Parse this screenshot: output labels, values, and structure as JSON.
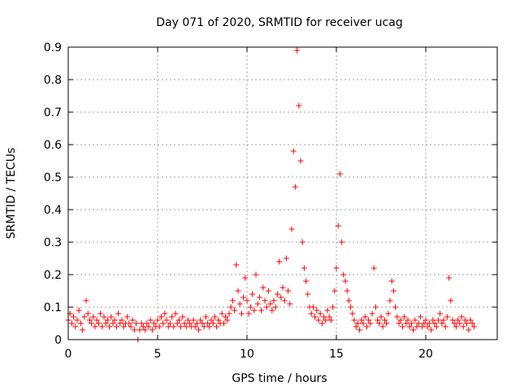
{
  "chart_data": {
    "type": "scatter",
    "title": "Day 071 of 2020, SRMTID for receiver ucag",
    "xlabel": "GPS time / hours",
    "ylabel": "SRMTID / TECUs",
    "xlim": [
      0,
      24
    ],
    "ylim": [
      0,
      0.9
    ],
    "x_ticks": [
      0,
      5,
      10,
      15,
      20
    ],
    "y_ticks": [
      0,
      0.1,
      0.2,
      0.3,
      0.4,
      0.5,
      0.6,
      0.7,
      0.8,
      0.9
    ],
    "x_tick_labels": [
      "0",
      "5",
      "10",
      "15",
      "20"
    ],
    "y_tick_labels": [
      "0",
      "0.1",
      "0.2",
      "0.3",
      "0.4",
      "0.5",
      "0.6",
      "0.7",
      "0.8",
      "0.9"
    ],
    "grid": true,
    "marker": "+",
    "series": [
      {
        "name": "SRMTID",
        "color": "#ff0000",
        "points": [
          [
            0.0,
            0.06
          ],
          [
            0.1,
            0.08
          ],
          [
            0.2,
            0.05
          ],
          [
            0.3,
            0.07
          ],
          [
            0.4,
            0.04
          ],
          [
            0.5,
            0.06
          ],
          [
            0.6,
            0.09
          ],
          [
            0.7,
            0.05
          ],
          [
            0.8,
            0.03
          ],
          [
            0.9,
            0.07
          ],
          [
            1.0,
            0.12
          ],
          [
            1.1,
            0.08
          ],
          [
            1.2,
            0.06
          ],
          [
            1.3,
            0.05
          ],
          [
            1.4,
            0.07
          ],
          [
            1.5,
            0.04
          ],
          [
            1.6,
            0.06
          ],
          [
            1.7,
            0.05
          ],
          [
            1.8,
            0.08
          ],
          [
            1.9,
            0.04
          ],
          [
            2.0,
            0.07
          ],
          [
            2.1,
            0.05
          ],
          [
            2.2,
            0.06
          ],
          [
            2.3,
            0.04
          ],
          [
            2.4,
            0.07
          ],
          [
            2.5,
            0.05
          ],
          [
            2.6,
            0.06
          ],
          [
            2.7,
            0.04
          ],
          [
            2.8,
            0.08
          ],
          [
            2.9,
            0.05
          ],
          [
            3.0,
            0.06
          ],
          [
            3.1,
            0.04
          ],
          [
            3.2,
            0.05
          ],
          [
            3.3,
            0.07
          ],
          [
            3.4,
            0.05
          ],
          [
            3.5,
            0.04
          ],
          [
            3.6,
            0.06
          ],
          [
            3.7,
            0.03
          ],
          [
            3.8,
            0.05
          ],
          [
            3.9,
            0.0
          ],
          [
            4.0,
            0.03
          ],
          [
            4.1,
            0.05
          ],
          [
            4.2,
            0.04
          ],
          [
            4.3,
            0.03
          ],
          [
            4.4,
            0.05
          ],
          [
            4.5,
            0.04
          ],
          [
            4.6,
            0.06
          ],
          [
            4.7,
            0.03
          ],
          [
            4.8,
            0.05
          ],
          [
            4.9,
            0.04
          ],
          [
            5.0,
            0.06
          ],
          [
            5.1,
            0.04
          ],
          [
            5.2,
            0.07
          ],
          [
            5.3,
            0.05
          ],
          [
            5.4,
            0.08
          ],
          [
            5.5,
            0.06
          ],
          [
            5.6,
            0.04
          ],
          [
            5.7,
            0.05
          ],
          [
            5.8,
            0.07
          ],
          [
            5.9,
            0.04
          ],
          [
            6.0,
            0.08
          ],
          [
            6.1,
            0.05
          ],
          [
            6.2,
            0.06
          ],
          [
            6.3,
            0.04
          ],
          [
            6.4,
            0.07
          ],
          [
            6.5,
            0.05
          ],
          [
            6.6,
            0.04
          ],
          [
            6.7,
            0.06
          ],
          [
            6.8,
            0.05
          ],
          [
            6.9,
            0.04
          ],
          [
            7.0,
            0.06
          ],
          [
            7.1,
            0.04
          ],
          [
            7.2,
            0.05
          ],
          [
            7.3,
            0.03
          ],
          [
            7.4,
            0.06
          ],
          [
            7.5,
            0.05
          ],
          [
            7.6,
            0.04
          ],
          [
            7.7,
            0.07
          ],
          [
            7.8,
            0.05
          ],
          [
            7.9,
            0.04
          ],
          [
            8.0,
            0.06
          ],
          [
            8.1,
            0.05
          ],
          [
            8.2,
            0.07
          ],
          [
            8.3,
            0.04
          ],
          [
            8.4,
            0.06
          ],
          [
            8.5,
            0.05
          ],
          [
            8.6,
            0.08
          ],
          [
            8.7,
            0.05
          ],
          [
            8.8,
            0.07
          ],
          [
            8.9,
            0.06
          ],
          [
            9.0,
            0.08
          ],
          [
            9.1,
            0.1
          ],
          [
            9.2,
            0.12
          ],
          [
            9.3,
            0.09
          ],
          [
            9.4,
            0.23
          ],
          [
            9.5,
            0.15
          ],
          [
            9.6,
            0.11
          ],
          [
            9.7,
            0.08
          ],
          [
            9.8,
            0.13
          ],
          [
            9.9,
            0.19
          ],
          [
            10.0,
            0.12
          ],
          [
            10.1,
            0.08
          ],
          [
            10.2,
            0.1
          ],
          [
            10.3,
            0.14
          ],
          [
            10.4,
            0.09
          ],
          [
            10.5,
            0.2
          ],
          [
            10.6,
            0.11
          ],
          [
            10.7,
            0.13
          ],
          [
            10.8,
            0.09
          ],
          [
            10.9,
            0.16
          ],
          [
            11.0,
            0.12
          ],
          [
            11.1,
            0.1
          ],
          [
            11.2,
            0.15
          ],
          [
            11.3,
            0.11
          ],
          [
            11.4,
            0.09
          ],
          [
            11.5,
            0.12
          ],
          [
            11.6,
            0.1
          ],
          [
            11.7,
            0.14
          ],
          [
            11.8,
            0.24
          ],
          [
            11.9,
            0.13
          ],
          [
            12.0,
            0.16
          ],
          [
            12.1,
            0.12
          ],
          [
            12.2,
            0.25
          ],
          [
            12.3,
            0.15
          ],
          [
            12.4,
            0.11
          ],
          [
            12.5,
            0.34
          ],
          [
            12.6,
            0.58
          ],
          [
            12.7,
            0.47
          ],
          [
            12.8,
            0.89
          ],
          [
            12.9,
            0.72
          ],
          [
            13.0,
            0.55
          ],
          [
            13.1,
            0.3
          ],
          [
            13.2,
            0.22
          ],
          [
            13.3,
            0.18
          ],
          [
            13.4,
            0.14
          ],
          [
            13.5,
            0.1
          ],
          [
            13.6,
            0.08
          ],
          [
            13.7,
            0.1
          ],
          [
            13.8,
            0.07
          ],
          [
            13.9,
            0.09
          ],
          [
            14.0,
            0.06
          ],
          [
            14.1,
            0.08
          ],
          [
            14.2,
            0.05
          ],
          [
            14.3,
            0.07
          ],
          [
            14.4,
            0.06
          ],
          [
            14.5,
            0.09
          ],
          [
            14.6,
            0.07
          ],
          [
            14.7,
            0.06
          ],
          [
            14.8,
            0.1
          ],
          [
            14.9,
            0.15
          ],
          [
            15.0,
            0.22
          ],
          [
            15.1,
            0.35
          ],
          [
            15.2,
            0.51
          ],
          [
            15.3,
            0.3
          ],
          [
            15.4,
            0.2
          ],
          [
            15.5,
            0.18
          ],
          [
            15.6,
            0.15
          ],
          [
            15.7,
            0.12
          ],
          [
            15.8,
            0.1
          ],
          [
            15.9,
            0.08
          ],
          [
            16.0,
            0.06
          ],
          [
            16.1,
            0.04
          ],
          [
            16.2,
            0.05
          ],
          [
            16.3,
            0.03
          ],
          [
            16.4,
            0.06
          ],
          [
            16.5,
            0.05
          ],
          [
            16.6,
            0.07
          ],
          [
            16.7,
            0.04
          ],
          [
            16.8,
            0.06
          ],
          [
            16.9,
            0.05
          ],
          [
            17.0,
            0.08
          ],
          [
            17.1,
            0.22
          ],
          [
            17.2,
            0.1
          ],
          [
            17.3,
            0.06
          ],
          [
            17.4,
            0.05
          ],
          [
            17.5,
            0.07
          ],
          [
            17.6,
            0.04
          ],
          [
            17.7,
            0.06
          ],
          [
            17.8,
            0.05
          ],
          [
            17.9,
            0.08
          ],
          [
            18.0,
            0.12
          ],
          [
            18.1,
            0.18
          ],
          [
            18.2,
            0.15
          ],
          [
            18.3,
            0.1
          ],
          [
            18.4,
            0.07
          ],
          [
            18.5,
            0.05
          ],
          [
            18.6,
            0.06
          ],
          [
            18.7,
            0.04
          ],
          [
            18.8,
            0.07
          ],
          [
            18.9,
            0.05
          ],
          [
            19.0,
            0.06
          ],
          [
            19.1,
            0.04
          ],
          [
            19.2,
            0.05
          ],
          [
            19.3,
            0.03
          ],
          [
            19.4,
            0.06
          ],
          [
            19.5,
            0.04
          ],
          [
            19.6,
            0.05
          ],
          [
            19.7,
            0.07
          ],
          [
            19.8,
            0.04
          ],
          [
            19.9,
            0.05
          ],
          [
            20.0,
            0.06
          ],
          [
            20.1,
            0.04
          ],
          [
            20.2,
            0.05
          ],
          [
            20.3,
            0.03
          ],
          [
            20.4,
            0.06
          ],
          [
            20.5,
            0.05
          ],
          [
            20.6,
            0.04
          ],
          [
            20.7,
            0.06
          ],
          [
            20.8,
            0.08
          ],
          [
            20.9,
            0.05
          ],
          [
            21.0,
            0.06
          ],
          [
            21.1,
            0.04
          ],
          [
            21.2,
            0.07
          ],
          [
            21.3,
            0.19
          ],
          [
            21.4,
            0.12
          ],
          [
            21.5,
            0.06
          ],
          [
            21.6,
            0.05
          ],
          [
            21.7,
            0.04
          ],
          [
            21.8,
            0.06
          ],
          [
            21.9,
            0.05
          ],
          [
            22.0,
            0.07
          ],
          [
            22.1,
            0.04
          ],
          [
            22.2,
            0.06
          ],
          [
            22.3,
            0.05
          ],
          [
            22.4,
            0.03
          ],
          [
            22.5,
            0.06
          ],
          [
            22.6,
            0.05
          ],
          [
            22.7,
            0.04
          ]
        ]
      }
    ]
  }
}
